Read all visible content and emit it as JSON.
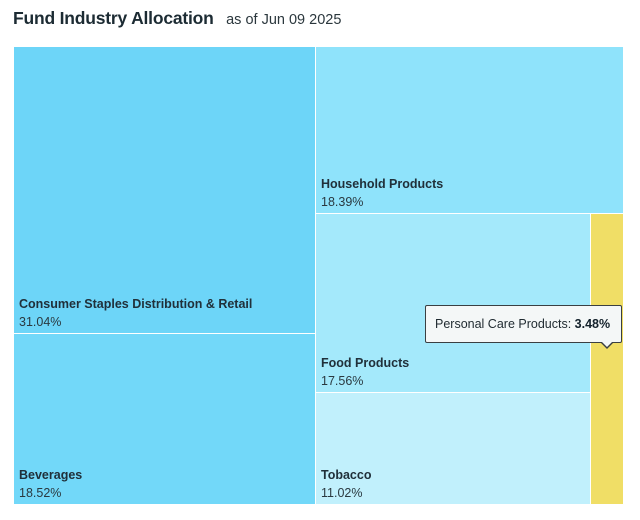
{
  "header": {
    "title": "Fund Industry Allocation",
    "as_of": "as of Jun 09 2025"
  },
  "chart_data": {
    "type": "treemap",
    "title": "Fund Industry Allocation",
    "subtitle": "as of Jun 09 2025",
    "unit": "%",
    "items": [
      {
        "name": "Consumer Staples Distribution & Retail",
        "value": 31.04,
        "label": "31.04%",
        "color": "#6dd5f8"
      },
      {
        "name": "Beverages",
        "value": 18.52,
        "label": "18.52%",
        "color": "#72d8f9"
      },
      {
        "name": "Household Products",
        "value": 18.39,
        "label": "18.39%",
        "color": "#8fe3fb"
      },
      {
        "name": "Food Products",
        "value": 17.56,
        "label": "17.56%",
        "color": "#a4e9fb"
      },
      {
        "name": "Tobacco",
        "value": 11.02,
        "label": "11.02%",
        "color": "#c1f0fc"
      },
      {
        "name": "Personal Care Products",
        "value": 3.48,
        "label": "3.48%",
        "color": "#f0de66"
      }
    ]
  },
  "tooltip": {
    "name": "Personal Care Products:",
    "value": "3.48%"
  }
}
